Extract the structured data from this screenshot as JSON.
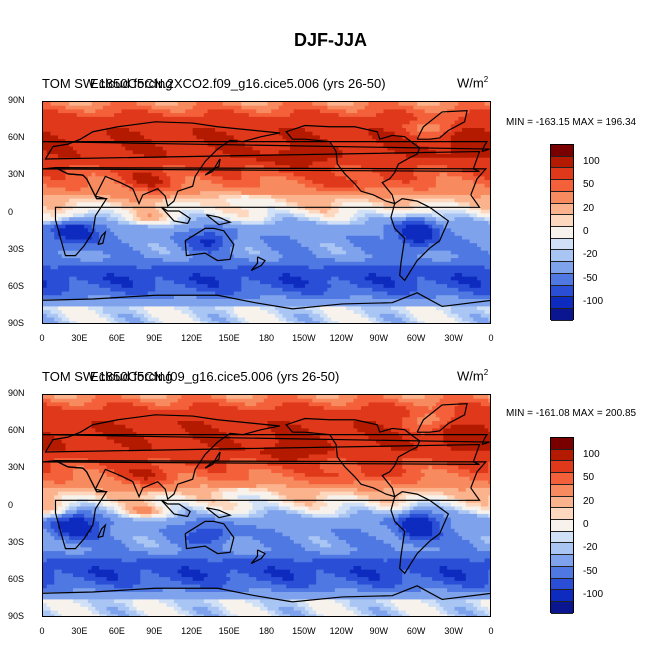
{
  "title": "DJF-JJA",
  "panels": [
    {
      "title_a": "TOM SW cloud forcing",
      "title_b": "E1850C5CN.2XCO2.f09_g16.cice5.006 (yrs 26-50)",
      "units_base": "W/m",
      "units_exp": "2",
      "minmax": "MIN = -163.15 MAX = 196.34"
    },
    {
      "title_a": "TOM SW cloud forcing",
      "title_b": "E1850C5CN.f09_g16.cice5.006 (yrs 26-50)",
      "units_base": "W/m",
      "units_exp": "2",
      "minmax": "MIN = -161.08 MAX = 200.85"
    }
  ],
  "lat_labels": [
    "90N",
    "60N",
    "30N",
    "0",
    "30S",
    "60S",
    "90S"
  ],
  "lon_labels": [
    "0",
    "30E",
    "60E",
    "90E",
    "120E",
    "150E",
    "180",
    "150W",
    "120W",
    "90W",
    "60W",
    "30W",
    "0"
  ],
  "colorbar": {
    "colors": [
      "#7a0000",
      "#b41a00",
      "#e0381a",
      "#f3603a",
      "#f78a5e",
      "#fbb38d",
      "#fdd8bf",
      "#f7f2ec",
      "#cfe0f7",
      "#a9c5f3",
      "#7ea2ec",
      "#4f78e2",
      "#2a4fd6",
      "#0e2bbf",
      "#0a1690"
    ],
    "labels": [
      "100",
      "50",
      "20",
      "0",
      "-20",
      "-50",
      "-100"
    ]
  },
  "chart_data": [
    {
      "type": "heatmap",
      "title": "TOM SW cloud forcing — E1850C5CN.2XCO2.f09_g16.cice5.006 (yrs 26-50)",
      "variable": "DJF-JJA TOM SW cloud forcing",
      "units": "W/m^2",
      "min": -163.15,
      "max": 196.34,
      "lat_ticks": [
        "90N",
        "60N",
        "30N",
        "0",
        "30S",
        "60S",
        "90S"
      ],
      "lon_ticks": [
        "0",
        "30E",
        "60E",
        "90E",
        "120E",
        "150E",
        "180",
        "150W",
        "120W",
        "90W",
        "60W",
        "30W",
        "0"
      ],
      "contour_levels": [
        -100,
        -50,
        -20,
        0,
        20,
        50,
        100
      ]
    },
    {
      "type": "heatmap",
      "title": "TOM SW cloud forcing — E1850C5CN.f09_g16.cice5.006 (yrs 26-50)",
      "variable": "DJF-JJA TOM SW cloud forcing",
      "units": "W/m^2",
      "min": -161.08,
      "max": 200.85,
      "lat_ticks": [
        "90N",
        "60N",
        "30N",
        "0",
        "30S",
        "60S",
        "90S"
      ],
      "lon_ticks": [
        "0",
        "30E",
        "60E",
        "90E",
        "120E",
        "150E",
        "180",
        "150W",
        "120W",
        "90W",
        "60W",
        "30W",
        "0"
      ],
      "contour_levels": [
        -100,
        -50,
        -20,
        0,
        20,
        50,
        100
      ]
    }
  ]
}
